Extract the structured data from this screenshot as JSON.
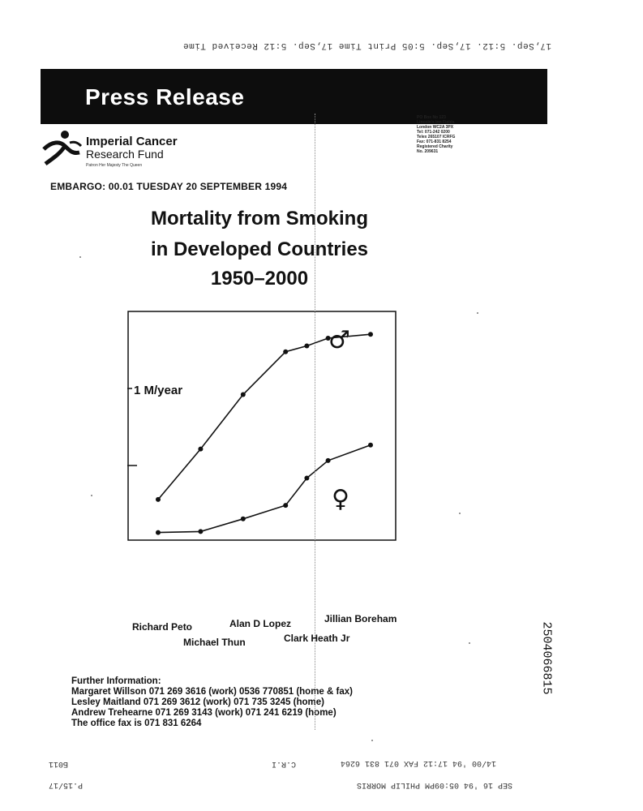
{
  "fax_header": "17,Sep. 5:12.   17,Sep. 5:05 Print Time   17,Sep. 5:12 Received Time",
  "banner_title": "Press Release",
  "logo": {
    "name": "Imperial Cancer",
    "name2": "Research Fund",
    "patron": "Patron Her Majesty The Queen"
  },
  "address": [
    "PO Box No 123",
    "Lincoln's Inn Fields",
    "London WC2A 3PX",
    "Tel: 071-242 0200",
    "Telex 265107 ICRFG",
    "Fax: 071-831 8254",
    "",
    "Registered Charity",
    "No. 209631"
  ],
  "embargo": "EMBARGO: 00.01 TUESDAY 20 SEPTEMBER 1994",
  "title_lines": [
    "Mortality from Smoking",
    "in Developed Countries",
    "1950–2000"
  ],
  "chart_data": {
    "type": "line",
    "x": [
      1950,
      1960,
      1970,
      1980,
      1985,
      1990,
      2000
    ],
    "series": [
      {
        "name": "♂",
        "values": [
          0.36,
          0.88,
          1.44,
          1.88,
          1.94,
          2.02,
          2.06
        ]
      },
      {
        "name": "♀",
        "values": [
          0.02,
          0.03,
          0.16,
          0.3,
          0.58,
          0.76,
          0.92
        ]
      }
    ],
    "y_label": "1 M/year",
    "ylim": [
      0,
      2.22
    ],
    "grid": false,
    "male_symbol": "♂",
    "female_symbol": "♀",
    "line_color": "#111111"
  },
  "authors": {
    "row1": [
      "Richard Peto",
      "Alan D Lopez",
      "Jillian Boreham"
    ],
    "row2": [
      "Michael Thun",
      "Clark Heath Jr"
    ]
  },
  "contact_lines": [
    "Further Information:",
    "Margaret Willson 071 269 3616 (work) 0536 770851 (home & fax)",
    "Lesley Maitland 071 269 3612 (work) 071 735 3245 (home)",
    "Andrew Trehearne 071 269 3143 (work) 071 241 6219 (home)",
    "The office fax is 071 831 6264"
  ],
  "doc_id": "2504066815",
  "footer": {
    "upside_fax_line": "14/00 '94 17:12 FAX 071 831 6264",
    "icrf_code": "C.R.I",
    "page_code": "P.15/17",
    "sender_line": "SEP 16 '94 05:09PM PHILIP MORRIS",
    "left_code": "Б011"
  }
}
